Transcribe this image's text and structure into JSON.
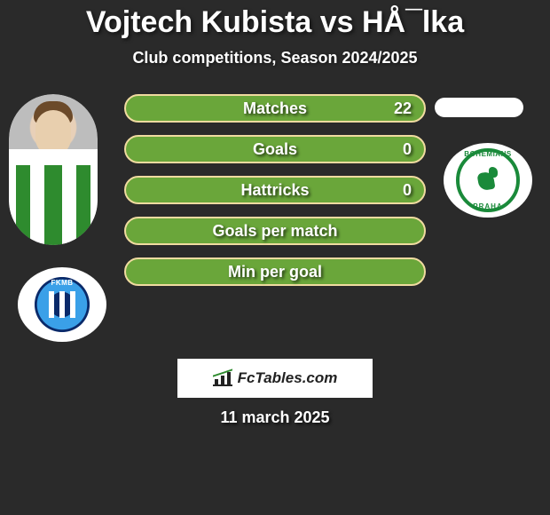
{
  "title": "Vojtech Kubista vs HÅ¯lka",
  "subtitle": "Club competitions, Season 2024/2025",
  "date": "11 march 2025",
  "footer_brand": "FcTables.com",
  "club_left": {
    "name": "FKMB",
    "badge_outer": "#3aa0e8",
    "badge_inner": "#0a2a6a",
    "stripe_color": "#ffffff"
  },
  "club_right": {
    "top_text": "BOHEMIANS",
    "bottom_text": "PRAHA",
    "ring_color": "#1a8a3a",
    "icon": "kangaroo"
  },
  "colors": {
    "page_bg": "#2a2a2a",
    "bar_fill": "#6aa63a",
    "bar_border": "#f0dba0",
    "text": "#ffffff",
    "footer_bg": "#ffffff",
    "footer_text": "#222222"
  },
  "bar_style": {
    "border_radius": 18,
    "height": 32,
    "gap": 14,
    "label_fontsize": 18,
    "label_fontweight": 800
  },
  "stats": [
    {
      "label": "Matches",
      "value": "22",
      "show_value": true
    },
    {
      "label": "Goals",
      "value": "0",
      "show_value": true
    },
    {
      "label": "Hattricks",
      "value": "0",
      "show_value": true
    },
    {
      "label": "Goals per match",
      "value": "",
      "show_value": false
    },
    {
      "label": "Min per goal",
      "value": "",
      "show_value": false
    }
  ]
}
